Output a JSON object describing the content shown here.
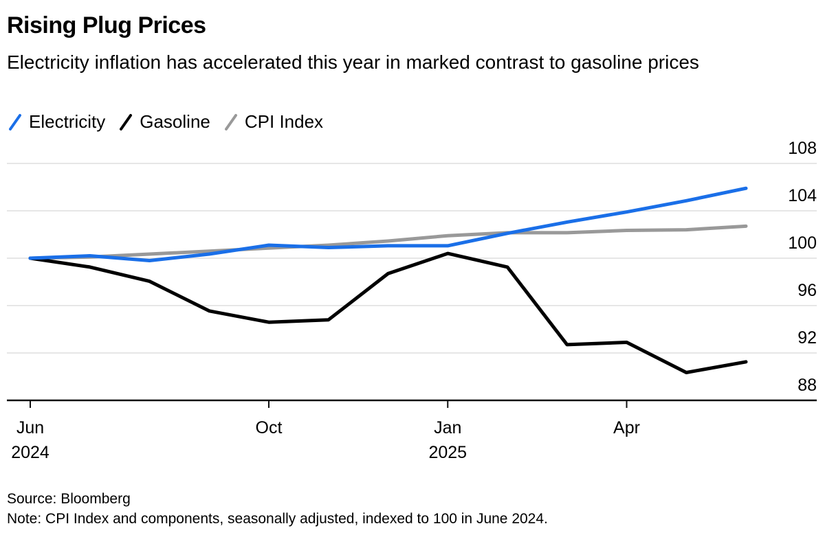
{
  "header": {
    "title": "Rising Plug Prices",
    "subtitle": "Electricity inflation has accelerated this year in marked contrast to gasoline prices"
  },
  "footer": {
    "source": "Source: Bloomberg",
    "note": "Note: CPI Index and components, seasonally adjusted, indexed to 100 in June 2024."
  },
  "chart_data": {
    "type": "line",
    "title": "Rising Plug Prices",
    "subtitle": "Electricity inflation has accelerated this year in marked contrast to gasoline prices",
    "xlabel": "",
    "ylabel": "",
    "x": [
      "Jun 2024",
      "Jul 2024",
      "Aug 2024",
      "Sep 2024",
      "Oct 2024",
      "Nov 2024",
      "Dec 2024",
      "Jan 2025",
      "Feb 2025",
      "Mar 2025",
      "Apr 2025",
      "May 2025",
      "Jun 2025"
    ],
    "series": [
      {
        "name": "Electricity",
        "color": "#1a6fe8",
        "values": [
          100,
          100.2,
          99.8,
          100.35,
          101.1,
          100.9,
          101.05,
          101.05,
          102.1,
          103.05,
          103.9,
          104.85,
          105.9
        ]
      },
      {
        "name": "Gasoline",
        "color": "#000000",
        "values": [
          100,
          99.25,
          98.05,
          95.55,
          94.6,
          94.8,
          98.7,
          100.4,
          99.25,
          92.7,
          92.9,
          90.35,
          91.25
        ]
      },
      {
        "name": "CPI Index",
        "color": "#999999",
        "values": [
          100,
          100.1,
          100.35,
          100.6,
          100.85,
          101.1,
          101.45,
          101.9,
          102.15,
          102.15,
          102.35,
          102.4,
          102.7
        ]
      }
    ],
    "ylim": [
      88,
      108
    ],
    "yticks": [
      88,
      92,
      96,
      100,
      104,
      108
    ],
    "ytick_labels": [
      "88",
      "92",
      "96",
      "100",
      "104",
      "108"
    ],
    "xticks": [
      {
        "index": 0,
        "label": "Jun",
        "sublabel": "2024"
      },
      {
        "index": 4,
        "label": "Oct",
        "sublabel": ""
      },
      {
        "index": 7,
        "label": "Jan",
        "sublabel": "2025"
      },
      {
        "index": 10,
        "label": "Apr",
        "sublabel": ""
      }
    ],
    "grid": true,
    "y_axis_position": "right",
    "legend_position": "top-left"
  }
}
